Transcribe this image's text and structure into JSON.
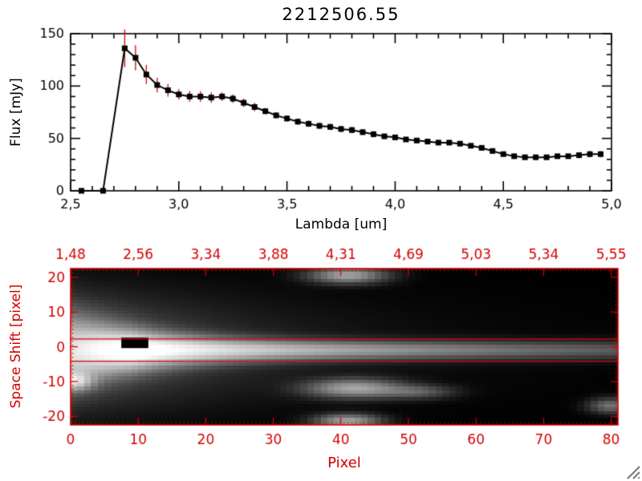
{
  "window": {
    "bg": "#ffffff"
  },
  "resize_grip": {
    "color": "#777777"
  },
  "chart_data": [
    {
      "type": "line",
      "title": "2212506.55",
      "xlabel": "Lambda [um]",
      "ylabel": "Flux [mJy]",
      "xlim": [
        2.5,
        5.0
      ],
      "ylim": [
        0,
        150
      ],
      "x_tick_vals": [
        2.5,
        3.0,
        3.5,
        4.0,
        4.5,
        5.0
      ],
      "x_tick_labels": [
        "2,5",
        "3,0",
        "3,5",
        "4,0",
        "4,5",
        "5,0"
      ],
      "x_minor_step": 0.1,
      "y_tick_vals": [
        0,
        50,
        100,
        150
      ],
      "y_tick_labels": [
        "0",
        "50",
        "100",
        "150"
      ],
      "y_minor_step": 10,
      "line_color": "#000000",
      "marker": "square",
      "error_color": "#d40000",
      "x": [
        2.55,
        2.65,
        2.75,
        2.8,
        2.85,
        2.9,
        2.95,
        3.0,
        3.05,
        3.1,
        3.15,
        3.2,
        3.25,
        3.3,
        3.35,
        3.4,
        3.45,
        3.5,
        3.55,
        3.6,
        3.65,
        3.7,
        3.75,
        3.8,
        3.85,
        3.9,
        3.95,
        4.0,
        4.05,
        4.1,
        4.15,
        4.2,
        4.25,
        4.3,
        4.35,
        4.4,
        4.45,
        4.5,
        4.55,
        4.6,
        4.65,
        4.7,
        4.75,
        4.8,
        4.85,
        4.9,
        4.95
      ],
      "y": [
        0,
        0,
        136,
        127,
        111,
        101,
        96,
        92,
        90,
        90,
        89,
        90,
        88,
        84,
        80,
        76,
        72,
        69,
        66,
        64,
        62,
        61,
        59,
        58,
        56,
        54,
        52,
        51,
        49,
        48,
        47,
        46,
        46,
        45,
        43,
        41,
        38,
        35,
        33,
        32,
        32,
        32,
        33,
        33,
        34,
        35,
        35
      ],
      "yerr": [
        1,
        1,
        18,
        12,
        9,
        7,
        6,
        5,
        5,
        5,
        5,
        4,
        4,
        4,
        4,
        3,
        3,
        3,
        3,
        3,
        3,
        3,
        3,
        3,
        3,
        3,
        2,
        2,
        2,
        2,
        2,
        2,
        2,
        2,
        2,
        2,
        2,
        2,
        2,
        2,
        2,
        2,
        2,
        2,
        3,
        3,
        3
      ]
    },
    {
      "type": "heatmap",
      "xlabel": "Pixel",
      "ylabel": "Space Shift [pixel]",
      "axis_color": "#d40000",
      "top_axis_labels": [
        "1,48",
        "2,56",
        "3,34",
        "3,88",
        "4,31",
        "4,69",
        "5,03",
        "5,34",
        "5,55"
      ],
      "x_tick_vals": [
        0,
        10,
        20,
        30,
        40,
        50,
        60,
        70,
        80
      ],
      "x_tick_labels": [
        "0",
        "10",
        "20",
        "30",
        "40",
        "50",
        "60",
        "70",
        "80"
      ],
      "y_tick_vals": [
        -20,
        -10,
        0,
        10,
        20
      ],
      "y_tick_labels": [
        "-20",
        "-10",
        "0",
        "10",
        "20"
      ],
      "xlim": [
        0,
        81
      ],
      "ylim": [
        -22.5,
        22.5
      ],
      "aperture_y": [
        2.2,
        -4.2
      ],
      "grid_nx": 81,
      "grid_ny": 45,
      "trace": {
        "y_center": -1,
        "x_peak": 9,
        "decay": 45,
        "sigma0": 1.6,
        "sigma_extra": 4.5,
        "sigma_decay": 12,
        "halo_amp": 0.35,
        "halo_decay": 15,
        "halo_sigma": 9,
        "gamma": 0.65
      },
      "blobs": [
        {
          "x": 41,
          "y": 20.5,
          "sx": 3.5,
          "sy": 1.4,
          "amp": 0.5
        },
        {
          "x": 0.5,
          "y": -10,
          "sx": 1.8,
          "sy": 1.7,
          "amp": 0.55
        },
        {
          "x": 42,
          "y": -12,
          "sx": 4.5,
          "sy": 1.7,
          "amp": 0.5
        },
        {
          "x": 51,
          "y": -13,
          "sx": 3.5,
          "sy": 1.2,
          "amp": 0.22
        },
        {
          "x": 41,
          "y": -21.5,
          "sx": 3.0,
          "sy": 1.3,
          "amp": 0.5
        },
        {
          "x": 80,
          "y": -17,
          "sx": 2.0,
          "sy": 1.3,
          "amp": 0.3
        }
      ],
      "mask_rect": {
        "x0": 7.5,
        "x1": 11.5,
        "y0": -0.4,
        "y1": 2.6
      }
    }
  ]
}
